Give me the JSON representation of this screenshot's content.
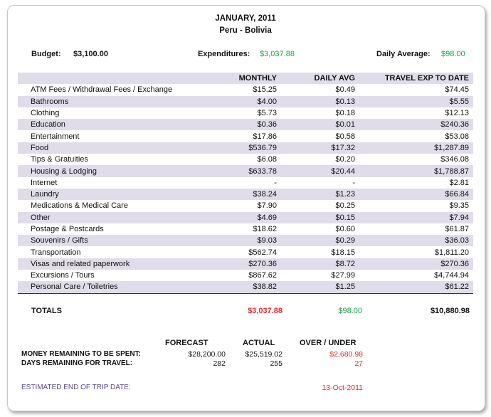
{
  "header": {
    "title": "JANUARY, 2011",
    "subtitle": "Peru - Bolivia"
  },
  "summary": {
    "budget_label": "Budget:",
    "budget": "$3,100.00",
    "expenditures_label": "Expenditures:",
    "expenditures": "$3,037.88",
    "daily_avg_label": "Daily Average:",
    "daily_avg": "$98.00"
  },
  "table": {
    "columns": [
      "MONTHLY",
      "DAILY AVG",
      "TRAVEL EXP TO DATE"
    ],
    "rows": [
      [
        "ATM Fees / Withdrawal Fees / Exchange",
        "$15.25",
        "$0.49",
        "$74.45"
      ],
      [
        "Bathrooms",
        "$4.00",
        "$0.13",
        "$5.55"
      ],
      [
        "Clothing",
        "$5.73",
        "$0.18",
        "$12.13"
      ],
      [
        "Education",
        "$0.36",
        "$0.01",
        "$240.36"
      ],
      [
        "Entertainment",
        "$17.86",
        "$0.58",
        "$53.08"
      ],
      [
        "Food",
        "$536.79",
        "$17.32",
        "$1,287.89"
      ],
      [
        "Tips & Gratuities",
        "$6.08",
        "$0.20",
        "$346.08"
      ],
      [
        "Housing & Lodging",
        "$633.78",
        "$20.44",
        "$1,788.87"
      ],
      [
        "Internet",
        "-",
        "-",
        "$2.81"
      ],
      [
        "Laundry",
        "$38.24",
        "$1.23",
        "$66.84"
      ],
      [
        "Medications & Medical Care",
        "$7.90",
        "$0.25",
        "$9.35"
      ],
      [
        "Other",
        "$4.69",
        "$0.15",
        "$7.94"
      ],
      [
        "Postage & Postcards",
        "$18.62",
        "$0.60",
        "$61.87"
      ],
      [
        "Souvenirs / Gifts",
        "$9.03",
        "$0.29",
        "$36.03"
      ],
      [
        "Transportation",
        "$562.74",
        "$18.15",
        "$1,811.20"
      ],
      [
        "Visas and related paperwork",
        "$270.36",
        "$8.72",
        "$270.36"
      ],
      [
        "Excursions / Tours",
        "$867.62",
        "$27.99",
        "$4,744.94"
      ],
      [
        "Personal Care / Toiletries",
        "$38.82",
        "$1.25",
        "$61.22"
      ]
    ]
  },
  "totals": {
    "label": "TOTALS",
    "monthly": "$3,037.88",
    "daily": "$98.00",
    "to_date": "$10,880.98"
  },
  "forecast": {
    "headers": [
      "FORECAST",
      "ACTUAL",
      "OVER / UNDER"
    ],
    "money_label": "MONEY REMAINING TO BE SPENT:",
    "money": [
      "$28,200.00",
      "$25,519.02",
      "$2,680.98"
    ],
    "days_label": "DAYS REMAINING FOR TRAVEL:",
    "days": [
      "282",
      "255",
      "27"
    ],
    "end_label": "ESTIMATED END OF TRIP DATE:",
    "end_date": "13-Oct-2011"
  }
}
